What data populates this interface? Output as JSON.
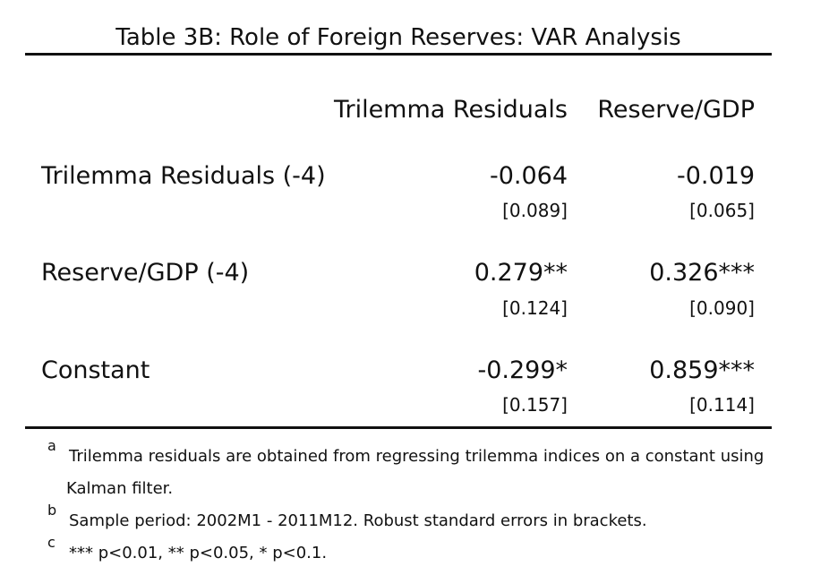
{
  "title": "Table 3B: Role of Foreign Reserves: VAR Analysis",
  "columns": [
    "Trilemma Residuals",
    "Reserve/GDP"
  ],
  "rows": [
    {
      "label": "Trilemma Residuals (-4)",
      "values": [
        "-0.064",
        "-0.019"
      ],
      "se": [
        "[0.089]",
        "[0.065]"
      ]
    },
    {
      "label": "Reserve/GDP (-4)",
      "values": [
        "0.279**",
        "0.326***"
      ],
      "se": [
        "[0.124]",
        "[0.090]"
      ]
    },
    {
      "label": "Constant",
      "values": [
        "-0.299*",
        "0.859***"
      ],
      "se": [
        "[0.157]",
        "[0.114]"
      ]
    }
  ],
  "notes": [
    {
      "mark": "a",
      "text": "Trilemma residuals are obtained from regressing trilemma indices on a constant using",
      "continuation": "Kalman filter."
    },
    {
      "mark": "b",
      "text": "Sample period: 2002M1 - 2011M12. Robust standard errors in brackets."
    },
    {
      "mark": "c",
      "text": "*** p<0.01, ** p<0.05, * p<0.1."
    }
  ]
}
